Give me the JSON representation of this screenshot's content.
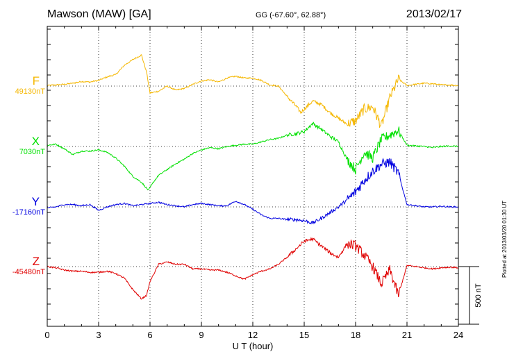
{
  "header": {
    "title": "Mawson (MAW)  [GA]",
    "coords": "GG (-67.60°,  62.88°)",
    "date": "2013/02/17"
  },
  "plotted_note": "Plotted at 2013/03/20 01:30 UT",
  "scale_label": "500 nT",
  "components": [
    {
      "letter": "F",
      "baseline": "49130nT",
      "color": "#f5b700"
    },
    {
      "letter": "X",
      "baseline": "7030nT",
      "color": "#00e000"
    },
    {
      "letter": "Y",
      "baseline": "-17160nT",
      "color": "#0000e0"
    },
    {
      "letter": "Z",
      "baseline": "-45480nT",
      "color": "#e00000"
    }
  ],
  "chart_data": {
    "type": "line",
    "xlabel": "U T (hour)",
    "xlim": [
      0,
      24
    ],
    "xticks": [
      "0",
      "3",
      "6",
      "9",
      "12",
      "15",
      "18",
      "21",
      "24"
    ],
    "y_units": "nT",
    "scale_bar_nT": 500,
    "grid": true,
    "series": [
      {
        "name": "F",
        "baseline": 49130,
        "x": [
          0,
          0.5,
          1,
          1.5,
          2,
          2.5,
          3,
          3.5,
          4,
          4.5,
          5,
          5.5,
          5.8,
          6,
          6.5,
          7,
          7.5,
          8,
          8.5,
          9,
          9.5,
          10,
          10.5,
          11,
          11.5,
          12,
          12.5,
          13,
          13.5,
          14,
          14.5,
          14.8,
          15,
          15.5,
          16,
          16.5,
          17,
          17.5,
          18,
          18.5,
          19,
          19.5,
          20,
          20.5,
          21,
          21.5,
          22,
          22.5,
          23,
          23.5,
          24
        ],
        "values": [
          5,
          10,
          15,
          25,
          40,
          35,
          50,
          80,
          100,
          180,
          230,
          270,
          120,
          -60,
          -45,
          0,
          -35,
          -20,
          15,
          45,
          55,
          35,
          70,
          85,
          70,
          70,
          50,
          10,
          0,
          -90,
          -170,
          -230,
          -200,
          -130,
          -160,
          -230,
          -280,
          -330,
          -300,
          -200,
          -180,
          -350,
          -100,
          60,
          5,
          15,
          25,
          20,
          10,
          10,
          5
        ]
      },
      {
        "name": "X",
        "baseline": 7030,
        "x": [
          0,
          0.5,
          1,
          1.5,
          2,
          2.5,
          3,
          3.5,
          4,
          4.5,
          5,
          5.5,
          5.9,
          6.2,
          6.5,
          7,
          7.5,
          8,
          8.5,
          9,
          9.5,
          10,
          10.5,
          11,
          11.5,
          12,
          12.5,
          13,
          13.5,
          14,
          14.5,
          15,
          15.5,
          16,
          16.5,
          17,
          17.5,
          18,
          18.5,
          19,
          19.5,
          20,
          20.5,
          21,
          21.5,
          22,
          22.5,
          23,
          23.5,
          24
        ],
        "values": [
          10,
          20,
          -20,
          -70,
          -40,
          -40,
          -30,
          -50,
          -100,
          -170,
          -260,
          -310,
          -380,
          -310,
          -250,
          -200,
          -150,
          -110,
          -60,
          -30,
          -10,
          -20,
          0,
          10,
          20,
          20,
          40,
          60,
          70,
          100,
          110,
          130,
          200,
          150,
          90,
          40,
          -110,
          -200,
          -50,
          -100,
          60,
          100,
          140,
          10,
          5,
          0,
          -10,
          0,
          5,
          0
        ]
      },
      {
        "name": "Y",
        "baseline": -17160,
        "x": [
          0,
          0.5,
          1,
          1.5,
          2,
          2.5,
          3,
          3.5,
          4,
          4.5,
          5,
          5.5,
          6,
          6.5,
          7,
          7.5,
          8,
          8.5,
          9,
          9.5,
          10,
          10.5,
          11,
          11.5,
          12,
          12.5,
          13,
          13.5,
          14,
          14.5,
          15,
          15.5,
          16,
          16.5,
          17,
          17.5,
          18,
          18.5,
          19,
          19.5,
          20,
          20.5,
          21,
          21.5,
          22,
          22.5,
          23,
          23.5,
          24
        ],
        "values": [
          -10,
          0,
          20,
          20,
          10,
          20,
          -30,
          0,
          20,
          30,
          10,
          20,
          30,
          40,
          20,
          10,
          0,
          20,
          30,
          20,
          10,
          10,
          50,
          20,
          -20,
          -70,
          -100,
          -100,
          -110,
          -110,
          -120,
          -140,
          -100,
          -50,
          0,
          60,
          130,
          230,
          310,
          370,
          390,
          290,
          20,
          10,
          0,
          0,
          5,
          0,
          0
        ]
      },
      {
        "name": "Z",
        "baseline": -45480,
        "x": [
          0,
          0.5,
          1,
          1.5,
          2,
          2.5,
          3,
          3.5,
          4,
          4.5,
          5,
          5.5,
          5.8,
          6,
          6.5,
          7,
          7.5,
          8,
          8.5,
          9,
          9.5,
          10,
          10.5,
          11,
          11.5,
          12,
          12.5,
          13,
          13.5,
          14,
          14.5,
          15,
          15.5,
          16,
          16.5,
          17,
          17.5,
          18,
          18.5,
          19,
          19.5,
          20,
          20.5,
          21,
          21.5,
          22,
          22.5,
          23,
          23.5,
          24
        ],
        "values": [
          0,
          -10,
          -30,
          -40,
          -40,
          -50,
          -50,
          -40,
          -60,
          -100,
          -200,
          -280,
          -250,
          -130,
          20,
          40,
          20,
          20,
          -20,
          -20,
          -30,
          -30,
          -50,
          -80,
          -110,
          -70,
          -40,
          -20,
          20,
          80,
          150,
          220,
          240,
          180,
          120,
          80,
          200,
          180,
          100,
          0,
          -150,
          -30,
          -250,
          10,
          0,
          -10,
          -20,
          -10,
          -5,
          -10
        ]
      }
    ]
  }
}
